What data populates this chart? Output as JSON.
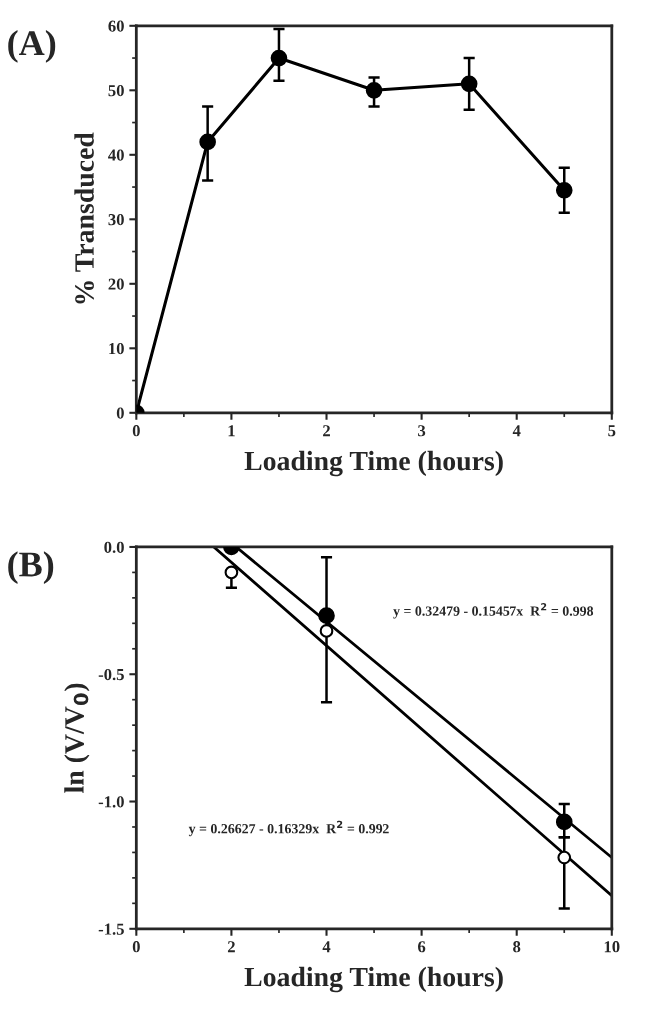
{
  "chart_data": [
    {
      "type": "line",
      "title": "(A)",
      "xlabel": "Loading Time (hours)",
      "ylabel": "% Transduced",
      "marker": "circle",
      "line_style": "solid",
      "grid": false,
      "legend": false,
      "xlim": [
        0,
        5
      ],
      "xticks": [
        0,
        1,
        2,
        3,
        4,
        5
      ],
      "ylim": [
        0,
        60
      ],
      "yticks": [
        0,
        10,
        20,
        30,
        40,
        50,
        60
      ],
      "series": [
        {
          "color": "#000000",
          "x": [
            0,
            0.75,
            1.5,
            2.5,
            3.5,
            4.5
          ],
          "values": [
            0,
            42,
            55,
            50,
            51,
            34.5
          ],
          "errors": [
            null,
            [
              36,
              47.5
            ],
            [
              51.5,
              59.5
            ],
            [
              47.5,
              52
            ],
            [
              47,
              55
            ],
            [
              31,
              38
            ]
          ]
        }
      ]
    },
    {
      "type": "scatter",
      "title": "(B)",
      "xlabel": "Loading Time (hours)",
      "ylabel": "ln (V/V$_{0}$)",
      "marker": "circle",
      "grid": false,
      "legend": false,
      "xlim": [
        0,
        10
      ],
      "xticks": [
        0,
        2,
        4,
        6,
        8,
        10
      ],
      "ylim": [
        -1.5,
        0
      ],
      "yticks": [
        {
          "value": -1.5,
          "label": "-1.5"
        },
        {
          "value": -1.0,
          "label": "-1.0"
        },
        {
          "value": -0.5,
          "label": "-0.5"
        },
        {
          "value": 0.0,
          "label": "0.0"
        }
      ],
      "annotations": [
        "y = 0.32479 - 0.15457x  R$^{2}$ = 0.998",
        "y = 0.26627 - 0.16329x  R$^{2}$ = 0.992"
      ],
      "series": [
        {
          "color": "#000000",
          "x": [
            2,
            4,
            9
          ],
          "values": [
            0.0,
            -0.27,
            -1.08
          ],
          "errors": [
            null,
            [
              -0.61,
              -0.04
            ],
            [
              -1.14,
              -1.01
            ]
          ]
        },
        {
          "color": "#ffffff",
          "x": [
            2,
            4,
            9
          ],
          "values": [
            -0.1,
            -0.33,
            -1.22
          ],
          "errors": [
            [
              -0.16,
              -0.1
            ],
            null,
            [
              -1.42,
              -1.14
            ]
          ]
        },
        {
          "type": "line",
          "marker": "none",
          "color": "#000000",
          "x": [
            2.1,
            10
          ],
          "values": [
            0.0,
            -1.22
          ]
        },
        {
          "type": "line",
          "marker": "none",
          "color": "#000000",
          "x": [
            1.63,
            10
          ],
          "values": [
            0.0,
            -1.37
          ]
        }
      ]
    }
  ]
}
